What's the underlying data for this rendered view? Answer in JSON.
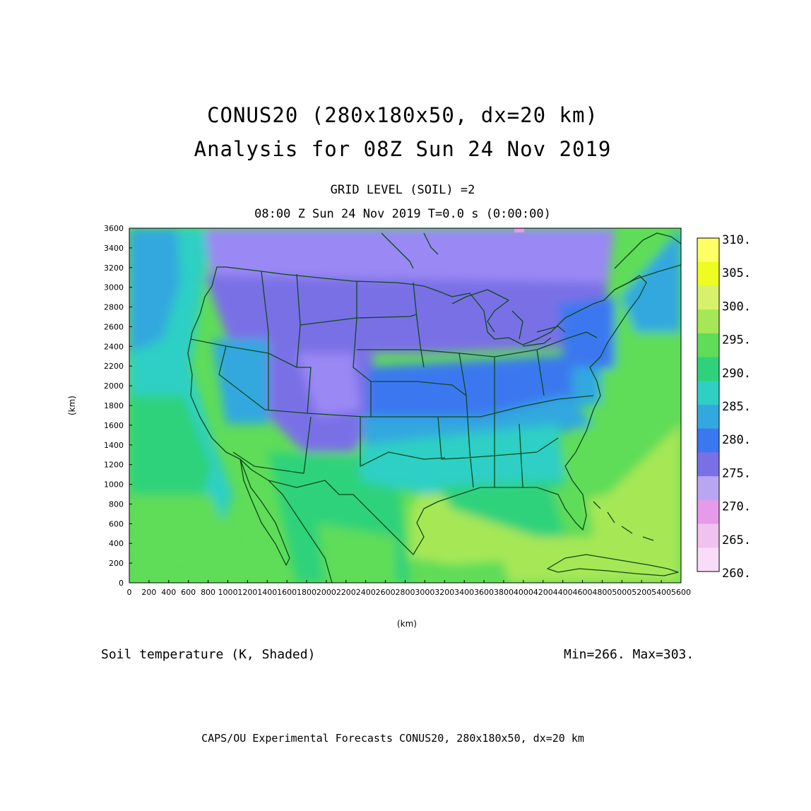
{
  "header": {
    "title_line1": "CONUS20 (280x180x50, dx=20 km)",
    "title_line2": "Analysis for 08Z Sun 24 Nov 2019",
    "subtitle_line1": "GRID LEVEL (SOIL) =2",
    "subtitle_line2": "08:00 Z Sun 24 Nov 2019   T=0.0 s (0:00:00)"
  },
  "footer": {
    "variable_label": "Soil temperature (K, Shaded)",
    "min_max": "Min=266. Max=303.",
    "credit": "CAPS/OU Experimental Forecasts  CONUS20, 280x180x50, dx=20 km"
  },
  "map": {
    "x_axis": {
      "label": "(km)",
      "range": [
        0,
        5600
      ],
      "ticks": [
        "0",
        "200",
        "400",
        "600",
        "800",
        "1000",
        "1200",
        "1400",
        "1600",
        "1800",
        "2000",
        "2200",
        "2400",
        "2600",
        "2800",
        "3000",
        "3200",
        "3400",
        "3600",
        "3800",
        "4000",
        "4200",
        "4400",
        "4600",
        "4800",
        "5000",
        "5200",
        "5400",
        "5600"
      ]
    },
    "y_axis": {
      "label": "(km)",
      "range": [
        0,
        3600
      ],
      "ticks": [
        "0",
        "200",
        "400",
        "600",
        "800",
        "1000",
        "1200",
        "1400",
        "1600",
        "1800",
        "2000",
        "2200",
        "2400",
        "2600",
        "2800",
        "3000",
        "3200",
        "3400",
        "3600"
      ]
    },
    "field_range": {
      "min": 266,
      "max": 303
    },
    "colors": {
      "boundary": "#0c4a1a",
      "ocean_west": "#35b2a8",
      "ocean_southwest": "#4dd85a",
      "atlantic": "#66dc55",
      "gulf": "#7be058",
      "canada": "#9488f2",
      "plains": "#7f78e6"
    }
  },
  "legend": {
    "bins": [
      {
        "label": "310.",
        "color": "#ffff66"
      },
      {
        "label": "305.",
        "color": "#eefc22"
      },
      {
        "label": "300.",
        "color": "#d7f26a"
      },
      {
        "label": "295.",
        "color": "#a6e756"
      },
      {
        "label": "290.",
        "color": "#5fdc58"
      },
      {
        "label": "285.",
        "color": "#2fd27a"
      },
      {
        "label": "280.",
        "color": "#2fcfc4"
      },
      {
        "label": "275.",
        "color": "#33a8df"
      },
      {
        "label": "270.",
        "color": "#3b78ef"
      },
      {
        "label": "265.",
        "color": "#7a70e6"
      },
      {
        "label": "260.",
        "color": "#9a88f4"
      }
    ],
    "extra_colors": [
      "#b8a6f2",
      "#e59be7",
      "#f0c2ef",
      "#f9dcf8"
    ]
  }
}
